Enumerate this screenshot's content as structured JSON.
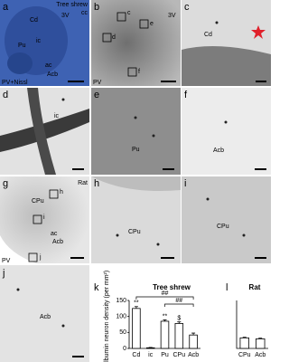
{
  "panels": {
    "a": {
      "letter": "a",
      "species": "Tree shrew",
      "labels": [
        "cc",
        "3V",
        "Cd",
        "ic",
        "Pu",
        "ac",
        "Acb"
      ],
      "stain": "PV+Nissl"
    },
    "b": {
      "letter": "b",
      "labels": [
        "3V",
        "c",
        "d",
        "e",
        "f"
      ],
      "stain": "PV"
    },
    "c": {
      "letter": "c",
      "labels": [
        "Cd"
      ]
    },
    "d": {
      "letter": "d",
      "labels": [
        "ic"
      ]
    },
    "e": {
      "letter": "e",
      "labels": [
        "Pu"
      ]
    },
    "f": {
      "letter": "f",
      "labels": [
        "Acb"
      ]
    },
    "g": {
      "letter": "g",
      "species": "Rat",
      "labels": [
        "CPu",
        "h",
        "i",
        "ac",
        "Acb",
        "j"
      ],
      "stain": "PV"
    },
    "h": {
      "letter": "h",
      "labels": [
        "CPu"
      ]
    },
    "i": {
      "letter": "i",
      "labels": [
        "CPu"
      ]
    },
    "j": {
      "letter": "j",
      "labels": [
        "Acb"
      ]
    }
  },
  "chart_data": [
    {
      "type": "bar",
      "letter": "k",
      "title": "Tree shrew",
      "ylabel": "Parvalbumin neuron density (per mm²)",
      "categories": [
        "Cd",
        "ic",
        "Pu",
        "CPu",
        "Acb"
      ],
      "values": [
        125,
        2,
        85,
        78,
        42
      ],
      "errors": [
        6,
        1,
        4,
        5,
        6
      ],
      "color": "#ffffff",
      "ylim": [
        0,
        150
      ],
      "yticks": [
        0,
        50,
        100,
        150
      ],
      "annotations": [
        "**",
        "**",
        "$",
        "##",
        "##"
      ]
    },
    {
      "type": "bar",
      "letter": "l",
      "title": "Rat",
      "categories": [
        "CPu",
        "Acb"
      ],
      "values": [
        33,
        30
      ],
      "errors": [
        2,
        2
      ],
      "color": "#ffffff",
      "ylim": [
        0,
        150
      ]
    }
  ]
}
